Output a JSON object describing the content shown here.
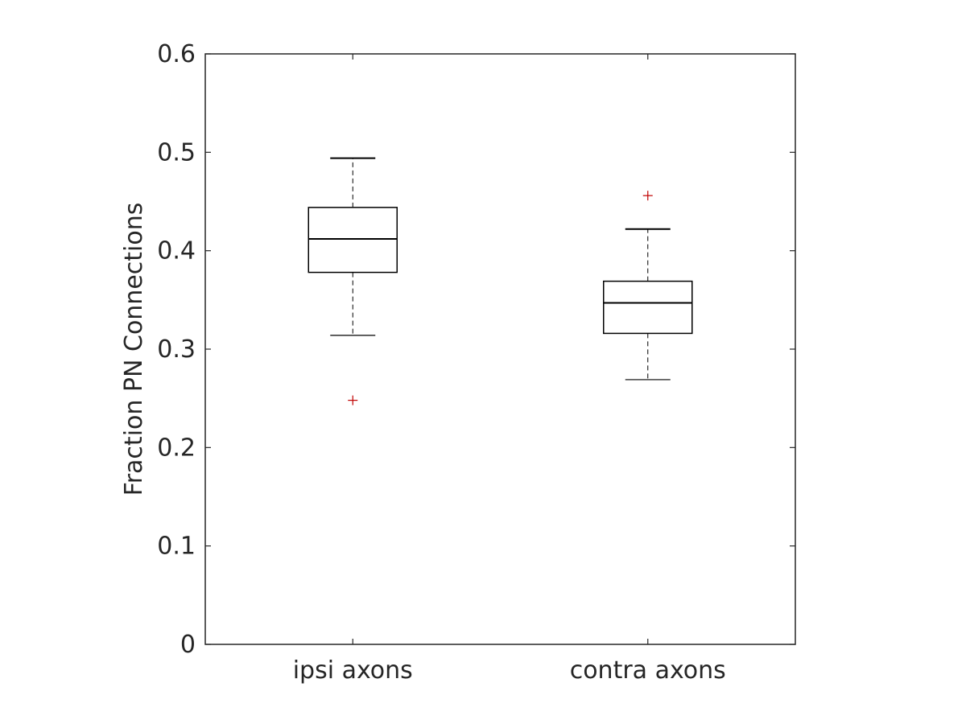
{
  "chart_data": {
    "type": "box",
    "ylabel": "Fraction PN Connections",
    "xlabel": "",
    "title": "",
    "ylim": [
      0,
      0.6
    ],
    "yticks": [
      "0",
      "0.1",
      "0.2",
      "0.3",
      "0.4",
      "0.5",
      "0.6"
    ],
    "yticks_values": [
      0,
      0.1,
      0.2,
      0.3,
      0.4,
      0.5,
      0.6
    ],
    "categories": [
      "ipsi axons",
      "contra axons"
    ],
    "boxes": [
      {
        "category": "ipsi axons",
        "whisker_low": 0.314,
        "q1": 0.378,
        "median": 0.412,
        "q3": 0.444,
        "whisker_high": 0.494,
        "outliers": [
          0.248
        ]
      },
      {
        "category": "contra axons",
        "whisker_low": 0.269,
        "q1": 0.316,
        "median": 0.347,
        "q3": 0.369,
        "whisker_high": 0.422,
        "outliers": [
          0.456
        ]
      }
    ],
    "grid": false,
    "colors": {
      "box": "#000000",
      "outlier": "#c00000",
      "axis": "#262626"
    }
  }
}
